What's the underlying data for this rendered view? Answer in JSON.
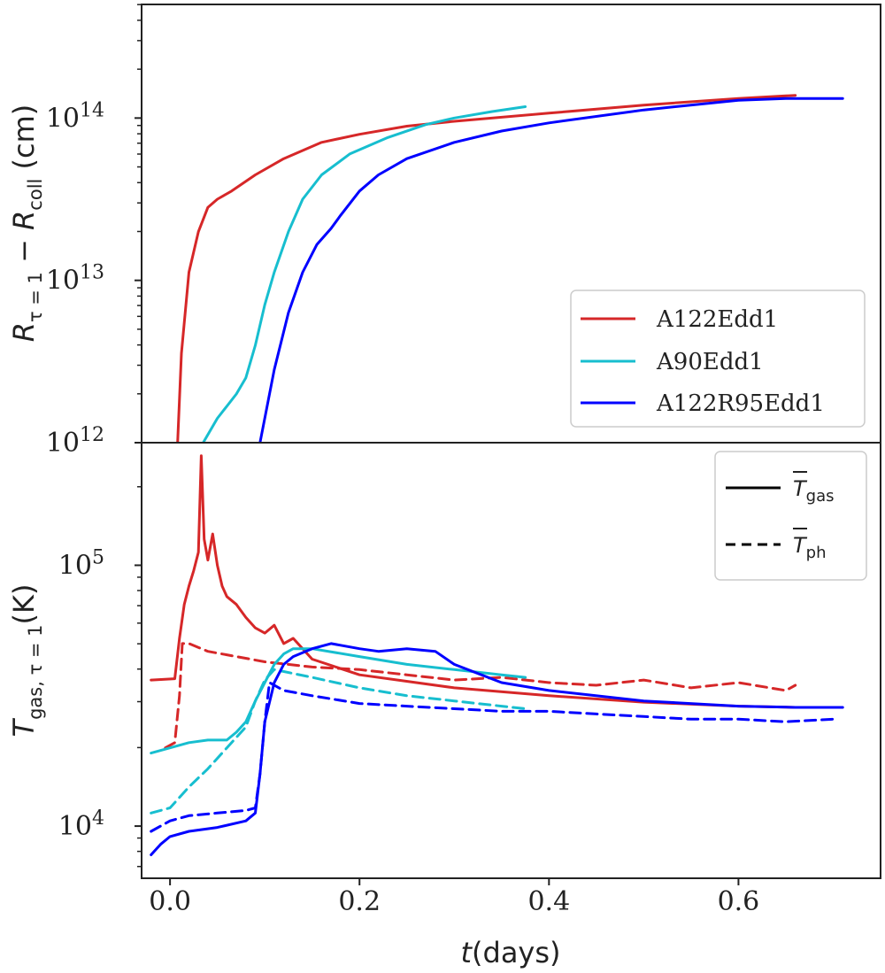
{
  "chart_data": [
    {
      "type": "line",
      "panel": "top",
      "yscale": "log",
      "ylabel": "R_{τ=1} − R_coll (cm)",
      "ylabel_parts": {
        "main": "R",
        "sub1": "τ = 1",
        "op": " − ",
        "main2": "R",
        "sub2": "coll",
        "unit": " (cm)"
      },
      "xlim": [
        -0.03,
        0.75
      ],
      "ylim_log10": [
        12,
        14.7
      ],
      "yticks": [
        {
          "exp": 12,
          "base": "10",
          "sup": "12"
        },
        {
          "exp": 13,
          "base": "10",
          "sup": "13"
        },
        {
          "exp": 14,
          "base": "10",
          "sup": "14"
        }
      ],
      "legend": {
        "position": "lower-right",
        "entries": [
          {
            "label": "A122Edd1",
            "color": "#d62728"
          },
          {
            "label": "A90Edd1",
            "color": "#17becf"
          },
          {
            "label": "A122R95Edd1",
            "color": "#0000ff"
          }
        ]
      },
      "series": [
        {
          "name": "A122Edd1",
          "color": "#d62728",
          "style": "solid",
          "x": [
            0.008,
            0.012,
            0.02,
            0.03,
            0.04,
            0.05,
            0.065,
            0.09,
            0.12,
            0.16,
            0.2,
            0.25,
            0.3,
            0.4,
            0.5,
            0.6,
            0.66
          ],
          "log10y": [
            12.0,
            12.55,
            13.05,
            13.3,
            13.45,
            13.5,
            13.55,
            13.65,
            13.75,
            13.85,
            13.9,
            13.95,
            13.98,
            14.03,
            14.08,
            14.12,
            14.14
          ]
        },
        {
          "name": "A90Edd1",
          "color": "#17becf",
          "style": "solid",
          "x": [
            0.035,
            0.05,
            0.07,
            0.08,
            0.09,
            0.1,
            0.11,
            0.125,
            0.14,
            0.16,
            0.19,
            0.23,
            0.27,
            0.3,
            0.34,
            0.375
          ],
          "log10y": [
            12.0,
            12.15,
            12.3,
            12.4,
            12.6,
            12.85,
            13.05,
            13.3,
            13.5,
            13.65,
            13.78,
            13.88,
            13.96,
            14.0,
            14.04,
            14.07
          ]
        },
        {
          "name": "A122R95Edd1",
          "color": "#0000ff",
          "style": "solid",
          "x": [
            0.095,
            0.11,
            0.125,
            0.14,
            0.155,
            0.17,
            0.18,
            0.2,
            0.22,
            0.25,
            0.3,
            0.35,
            0.4,
            0.5,
            0.6,
            0.65,
            0.71
          ],
          "log10y": [
            12.0,
            12.45,
            12.8,
            13.05,
            13.22,
            13.32,
            13.4,
            13.55,
            13.65,
            13.75,
            13.85,
            13.92,
            13.97,
            14.05,
            14.11,
            14.12,
            14.12
          ]
        }
      ]
    },
    {
      "type": "line",
      "panel": "bottom",
      "yscale": "log",
      "ylabel": "T_{gas, τ=1}(K)",
      "ylabel_parts": {
        "main": "T",
        "sub": "gas, τ = 1",
        "unit": "(K)"
      },
      "xlabel": "t(days)",
      "xlabel_parts": {
        "var": "t",
        "unit": "(days)"
      },
      "xlim": [
        -0.03,
        0.75
      ],
      "ylim_log10": [
        3.8,
        5.47
      ],
      "xticks": [
        0.0,
        0.2,
        0.4,
        0.6
      ],
      "xtick_labels": [
        "0.0",
        "0.2",
        "0.4",
        "0.6"
      ],
      "yticks": [
        {
          "exp": 4,
          "base": "10",
          "sup": "4"
        },
        {
          "exp": 5,
          "base": "10",
          "sup": "5"
        }
      ],
      "legend": {
        "position": "top-right",
        "entries": [
          {
            "label": "T̄_gas",
            "main": "T",
            "sub": "gas",
            "style": "solid",
            "color": "#000000"
          },
          {
            "label": "T̄_ph",
            "main": "T",
            "sub": "ph",
            "style": "dashed",
            "color": "#000000"
          }
        ]
      },
      "series": [
        {
          "name": "A122Edd1 T_gas",
          "color": "#d62728",
          "style": "solid",
          "x": [
            -0.02,
            0.005,
            0.01,
            0.015,
            0.02,
            0.025,
            0.03,
            0.033,
            0.036,
            0.04,
            0.045,
            0.05,
            0.055,
            0.06,
            0.07,
            0.08,
            0.09,
            0.1,
            0.11,
            0.12,
            0.13,
            0.15,
            0.2,
            0.3,
            0.4,
            0.5,
            0.6,
            0.66
          ],
          "log10y": [
            4.56,
            4.565,
            4.72,
            4.85,
            4.92,
            4.98,
            5.05,
            5.42,
            5.1,
            5.02,
            5.12,
            5.0,
            4.92,
            4.88,
            4.85,
            4.8,
            4.76,
            4.74,
            4.77,
            4.7,
            4.72,
            4.64,
            4.58,
            4.53,
            4.5,
            4.475,
            4.46,
            4.455
          ]
        },
        {
          "name": "A122Edd1 T_ph",
          "color": "#d62728",
          "style": "dashed",
          "x": [
            -0.005,
            0.005,
            0.01,
            0.013,
            0.02,
            0.04,
            0.07,
            0.1,
            0.15,
            0.2,
            0.25,
            0.3,
            0.35,
            0.4,
            0.45,
            0.5,
            0.55,
            0.6,
            0.65,
            0.66
          ],
          "log10y": [
            4.3,
            4.32,
            4.5,
            4.7,
            4.7,
            4.67,
            4.65,
            4.63,
            4.61,
            4.6,
            4.58,
            4.56,
            4.57,
            4.55,
            4.54,
            4.56,
            4.53,
            4.55,
            4.52,
            4.54
          ]
        },
        {
          "name": "A90Edd1 T_gas",
          "color": "#17becf",
          "style": "solid",
          "x": [
            -0.02,
            0.0,
            0.02,
            0.04,
            0.06,
            0.07,
            0.08,
            0.09,
            0.1,
            0.11,
            0.12,
            0.13,
            0.15,
            0.2,
            0.25,
            0.3,
            0.35,
            0.375
          ],
          "log10y": [
            4.28,
            4.3,
            4.32,
            4.33,
            4.33,
            4.36,
            4.4,
            4.48,
            4.55,
            4.62,
            4.66,
            4.68,
            4.68,
            4.65,
            4.62,
            4.6,
            4.58,
            4.57
          ]
        },
        {
          "name": "A90Edd1 T_ph",
          "color": "#17becf",
          "style": "dashed",
          "x": [
            -0.02,
            0.0,
            0.02,
            0.04,
            0.06,
            0.08,
            0.09,
            0.1,
            0.11,
            0.15,
            0.2,
            0.25,
            0.3,
            0.35,
            0.375
          ],
          "log10y": [
            4.05,
            4.07,
            4.15,
            4.22,
            4.3,
            4.38,
            4.48,
            4.56,
            4.6,
            4.57,
            4.53,
            4.5,
            4.48,
            4.46,
            4.45
          ]
        },
        {
          "name": "A122R95Edd1 T_gas",
          "color": "#0000ff",
          "style": "solid",
          "x": [
            -0.02,
            -0.01,
            0.0,
            0.02,
            0.05,
            0.08,
            0.09,
            0.095,
            0.1,
            0.11,
            0.12,
            0.13,
            0.15,
            0.17,
            0.2,
            0.22,
            0.25,
            0.28,
            0.3,
            0.35,
            0.4,
            0.5,
            0.6,
            0.66,
            0.71
          ],
          "log10y": [
            3.89,
            3.93,
            3.96,
            3.98,
            3.995,
            4.02,
            4.05,
            4.2,
            4.4,
            4.55,
            4.62,
            4.65,
            4.68,
            4.7,
            4.68,
            4.67,
            4.68,
            4.67,
            4.62,
            4.55,
            4.52,
            4.48,
            4.46,
            4.455,
            4.455
          ]
        },
        {
          "name": "A122R95Edd1 T_ph",
          "color": "#0000ff",
          "style": "dashed",
          "x": [
            -0.02,
            -0.01,
            0.0,
            0.02,
            0.05,
            0.08,
            0.09,
            0.095,
            0.1,
            0.105,
            0.12,
            0.15,
            0.2,
            0.25,
            0.3,
            0.35,
            0.4,
            0.45,
            0.5,
            0.55,
            0.6,
            0.65,
            0.7,
            0.705
          ],
          "log10y": [
            3.98,
            4.0,
            4.02,
            4.04,
            4.05,
            4.06,
            4.07,
            4.2,
            4.4,
            4.55,
            4.52,
            4.5,
            4.47,
            4.46,
            4.45,
            4.44,
            4.44,
            4.43,
            4.42,
            4.41,
            4.41,
            4.4,
            4.41,
            4.41
          ]
        }
      ]
    }
  ]
}
